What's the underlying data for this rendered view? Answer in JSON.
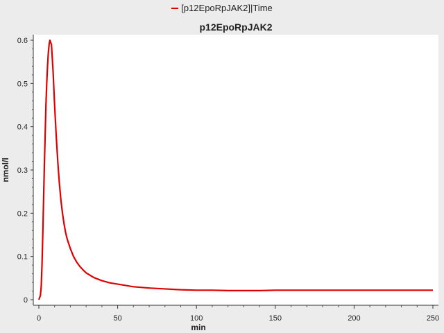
{
  "chart_data": {
    "type": "line",
    "title": "p12EpoRpJAK2",
    "xlabel": "min",
    "ylabel": "nmol/l",
    "xlim": [
      0,
      250
    ],
    "ylim": [
      0,
      0.6
    ],
    "xticks": [
      0,
      50,
      100,
      150,
      200,
      250
    ],
    "yticks": [
      0,
      0.1,
      0.2,
      0.3,
      0.4,
      0.5,
      0.6
    ],
    "xtick_labels": [
      "0",
      "50",
      "100",
      "150",
      "200",
      "250"
    ],
    "ytick_labels": [
      "0",
      "0.1",
      "0.2",
      "0.3",
      "0.4",
      "0.5",
      "0.6"
    ],
    "grid": false,
    "legend_position": "top-center",
    "series": [
      {
        "name": "[p12EpoRpJAK2]|Time",
        "color": "#dd0000",
        "x": [
          0,
          1,
          1.5,
          2,
          2.5,
          3,
          3.5,
          4,
          4.5,
          5,
          5.5,
          6,
          6.5,
          7,
          7.5,
          8,
          8.5,
          9,
          9.5,
          10,
          11,
          12,
          13,
          14,
          15,
          16,
          17,
          18,
          20,
          22,
          24,
          26,
          28,
          30,
          35,
          40,
          45,
          50,
          55,
          60,
          70,
          80,
          90,
          100,
          110,
          120,
          130,
          140,
          150,
          175,
          200,
          225,
          250
        ],
        "y": [
          0.0,
          0.01,
          0.03,
          0.08,
          0.15,
          0.23,
          0.31,
          0.38,
          0.45,
          0.5,
          0.54,
          0.57,
          0.59,
          0.6,
          0.595,
          0.59,
          0.56,
          0.53,
          0.49,
          0.45,
          0.38,
          0.32,
          0.27,
          0.23,
          0.2,
          0.175,
          0.155,
          0.14,
          0.118,
          0.1,
          0.087,
          0.077,
          0.069,
          0.062,
          0.051,
          0.044,
          0.039,
          0.036,
          0.033,
          0.03,
          0.027,
          0.025,
          0.023,
          0.022,
          0.022,
          0.021,
          0.021,
          0.021,
          0.022,
          0.022,
          0.022,
          0.022,
          0.022
        ]
      }
    ]
  }
}
